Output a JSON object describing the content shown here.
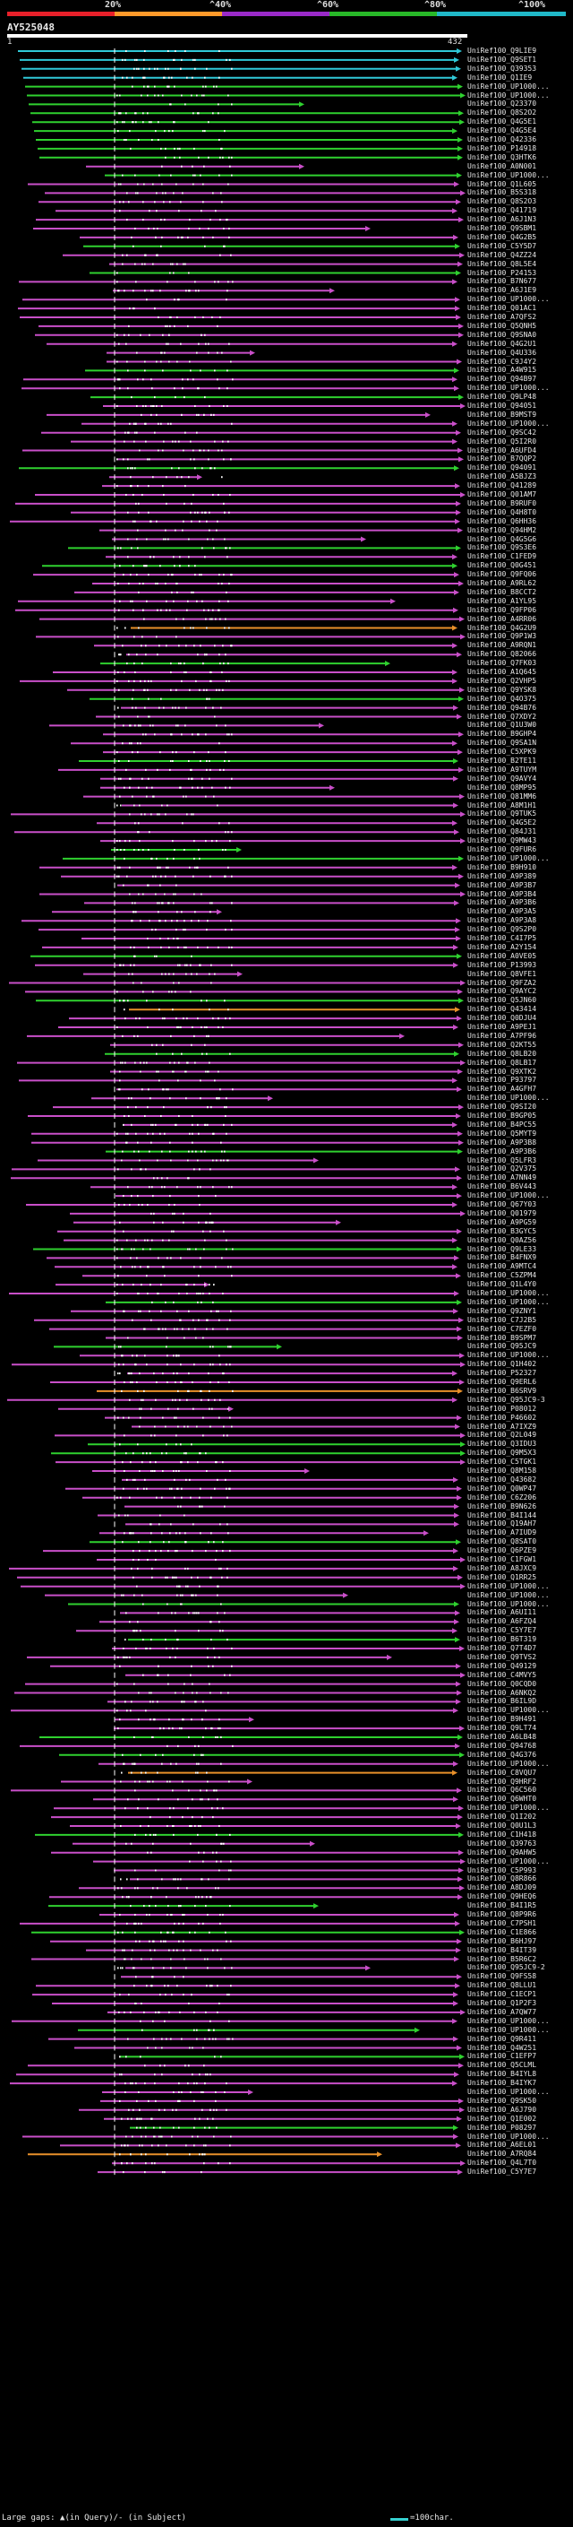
{
  "query": {
    "title": "AY525048",
    "start_label": "1",
    "end_label": "432",
    "length": 432
  },
  "identity_scale": {
    "labels": [
      "20%",
      "^40%",
      "^60%",
      "^80%",
      "^100%"
    ],
    "colors": [
      "#e8202a",
      "#ff9a2a",
      "#9a2ac8",
      "#28b828",
      "#20b8c8"
    ]
  },
  "footer": {
    "text": "Large gaps: ▲(in Query)/- (in Subject)",
    "scale_text": "=100char."
  },
  "hit_ids": [
    "UniRef100_Q9LIE9",
    "UniRef100_Q9SET1",
    "UniRef100_Q39353",
    "UniRef100_Q1IE9",
    "UniRef100_UP1000...",
    "UniRef100_UP1000...",
    "UniRef100_Q23370",
    "UniRef100_Q8S2O2",
    "UniRef100_Q4G5E1",
    "UniRef100_Q4G5E4",
    "UniRef100_Q42336",
    "UniRef100_P14918",
    "UniRef100_Q3HTK6",
    "UniRef100_A0N001",
    "UniRef100_UP1000...",
    "UniRef100_Q1L605",
    "UniRef100_B5S318",
    "UniRef100_Q8S2O3",
    "UniRef100_Q41719",
    "UniRef100_A6J1N3",
    "UniRef100_Q9SBM1",
    "UniRef100_Q4G2B5",
    "UniRef100_C5Y5D7",
    "UniRef100_Q4ZZ24",
    "UniRef100_Q8L5E4",
    "UniRef100_P24153",
    "UniRef100_B7N677",
    "UniRef100_A6J1E9",
    "UniRef100_UP1000...",
    "UniRef100_Q01AC1",
    "UniRef100_A7QFS2",
    "UniRef100_Q5QNH5",
    "UniRef100_Q9SNA0",
    "UniRef100_Q4G2U1",
    "UniRef100_Q4U336",
    "UniRef100_C9J4Y2",
    "UniRef100_A4W915",
    "UniRef100_Q94B97",
    "UniRef100_UP1000...",
    "UniRef100_Q9LP48",
    "UniRef100_Q94051",
    "UniRef100_B9MST9",
    "UniRef100_UP1000...",
    "UniRef100_Q9SC42",
    "UniRef100_Q5I2R0",
    "UniRef100_A6UFD4",
    "UniRef100_B7QQP2",
    "UniRef100_Q94091",
    "UniRef100_A5BJZ3",
    "UniRef100_Q41289",
    "UniRef100_Q01AM7",
    "UniRef100_B9RUF0",
    "UniRef100_Q4H8T0",
    "UniRef100_Q6HH36",
    "UniRef100_Q94HM2",
    "UniRef100_Q4G5G6",
    "UniRef100_Q9S3E6",
    "UniRef100_C1FED9",
    "UniRef100_Q0G451",
    "UniRef100_Q9FQ06",
    "UniRef100_A9RL62",
    "UniRef100_B8CCT2",
    "UniRef100_A1YL95",
    "UniRef100_Q9FP06",
    "UniRef100_A4RR06",
    "UniRef100_Q4G2U9",
    "UniRef100_Q9P1W3",
    "UniRef100_A9RQN1",
    "UniRef100_Q82066",
    "UniRef100_Q7FK03",
    "UniRef100_A1Q645",
    "UniRef100_Q2VHP5",
    "UniRef100_Q9YSK8",
    "UniRef100_Q4O375",
    "UniRef100_Q94B76",
    "UniRef100_Q7XDY2",
    "UniRef100_Q1U3W0",
    "UniRef100_B9GHP4",
    "UniRef100_Q9SA1N",
    "UniRef100_C5XPK9",
    "UniRef100_B2TE11",
    "UniRef100_A9TUYM",
    "UniRef100_Q9AVY4",
    "UniRef100_Q8MP95",
    "UniRef100_Q81MM6",
    "UniRef100_A8M1H1",
    "UniRef100_Q9TUK5",
    "UniRef100_Q4G5E2",
    "UniRef100_Q84J31",
    "UniRef100_Q9MW43",
    "UniRef100_Q9FUR6",
    "UniRef100_UP1000...",
    "UniRef100_B9H910",
    "UniRef100_A9P389",
    "UniRef100_A9P3B7",
    "UniRef100_A9P3B4",
    "UniRef100_A9P3B6",
    "UniRef100_A9P3A5",
    "UniRef100_A9P3A8",
    "UniRef100_Q9S2P0",
    "UniRef100_C4I7P5",
    "UniRef100_A2Y154",
    "UniRef100_A0VE05",
    "UniRef100_P13993",
    "UniRef100_Q8VFE1",
    "UniRef100_Q9FZA2",
    "UniRef100_Q9AYC2",
    "UniRef100_Q5JN60",
    "UniRef100_Q43414",
    "UniRef100_Q0DJU4",
    "UniRef100_A9PEJ1",
    "UniRef100_A7PF96",
    "UniRef100_Q2KT55",
    "UniRef100_Q8LB20",
    "UniRef100_Q8LB17",
    "UniRef100_Q9XTK2",
    "UniRef100_P93797",
    "UniRef100_A4GFH7",
    "UniRef100_UP1000...",
    "UniRef100_Q9SI20",
    "UniRef100_B9GP05",
    "UniRef100_B4PC55",
    "UniRef100_Q5MYT9",
    "UniRef100_A9P3B8",
    "UniRef100_A9P3B6",
    "UniRef100_Q5LFR3",
    "UniRef100_Q2V375",
    "UniRef100_A7NN49",
    "UniRef100_B6V443",
    "UniRef100_UP1000...",
    "UniRef100_Q67Y03",
    "UniRef100_Q01979",
    "UniRef100_A9PG59",
    "UniRef100_B3GYC5",
    "UniRef100_Q0AZ56",
    "UniRef100_Q9LE33",
    "UniRef100_B4FNX9",
    "UniRef100_A9MTC4",
    "UniRef100_C5ZPM4",
    "UniRef100_Q1L4Y0",
    "UniRef100_UP1000...",
    "UniRef100_UP1000...",
    "UniRef100_Q9ZNY1",
    "UniRef100_C7J2B5",
    "UniRef100_C7EZF0",
    "UniRef100_B9SPM7",
    "UniRef100_Q95JC9",
    "UniRef100_UP1000...",
    "UniRef100_Q1H402",
    "UniRef100_P52327",
    "UniRef100_Q9ERL6",
    "UniRef100_B6SRV9",
    "UniRef100_Q95JC9-3",
    "UniRef100_P08012",
    "UniRef100_P46602",
    "UniRef100_A7IXZ9",
    "UniRef100_Q2L049",
    "UniRef100_Q3IDU3",
    "UniRef100_Q9M5X3",
    "UniRef100_C5TGK1",
    "UniRef100_Q8M158",
    "UniRef100_Q43682",
    "UniRef100_Q0WP47",
    "UniRef100_C6Z206",
    "UniRef100_B9N626",
    "UniRef100_B4I144",
    "UniRef100_Q19AH7",
    "UniRef100_A7IUD9",
    "UniRef100_Q8SAT0",
    "UniRef100_Q6PZE9",
    "UniRef100_C1FGW1",
    "UniRef100_A8JXC9",
    "UniRef100_Q1RR25",
    "UniRef100_UP1000...",
    "UniRef100_UP1000...",
    "UniRef100_UP1000...",
    "UniRef100_A6UI11",
    "UniRef100_A6FZQ4",
    "UniRef100_C5Y7E7",
    "UniRef100_B6T319",
    "UniRef100_Q7T4D7",
    "UniRef100_Q9TVS2",
    "UniRef100_Q49129",
    "UniRef100_C4MVY5",
    "UniRef100_Q0CQD0",
    "UniRef100_A6NKQ2",
    "UniRef100_B6IL9D",
    "UniRef100_UP1000...",
    "UniRef100_B9H491",
    "UniRef100_Q9LT74",
    "UniRef100_A6LB48",
    "UniRef100_Q94768",
    "UniRef100_Q4G376",
    "UniRef100_UP1000...",
    "UniRef100_C8VQU7",
    "UniRef100_Q9HRF2",
    "UniRef100_Q6C560",
    "UniRef100_Q6WHT0",
    "UniRef100_UP1000...",
    "UniRef100_Q1I202",
    "UniRef100_Q0U1L3",
    "UniRef100_C1H418",
    "UniRef100_Q39763",
    "UniRef100_Q9AHW5",
    "UniRef100_UP1000...",
    "UniRef100_C5P993",
    "UniRef100_Q8R866",
    "UniRef100_A8DJ09",
    "UniRef100_Q9HEQ6",
    "UniRef100_B4I1R5",
    "UniRef100_Q8P9R6",
    "UniRef100_C7PSH1",
    "UniRef100_C1E866",
    "UniRef100_B6HJ97",
    "UniRef100_B4IT39",
    "UniRef100_B5R6C2",
    "UniRef100_Q95JC9-2",
    "UniRef100_Q9FS58",
    "UniRef100_Q8LLU1",
    "UniRef100_C1ECP1",
    "UniRef100_Q1P2F3",
    "UniRef100_A7QW77",
    "UniRef100_UP1000...",
    "UniRef100_UP1000...",
    "UniRef100_Q9R411",
    "UniRef100_Q4W251",
    "UniRef100_C1EFP7",
    "UniRef100_Q5CLML",
    "UniRef100_B4IYL8",
    "UniRef100_B4IYK7",
    "UniRef100_UP1000...",
    "UniRef100_Q9SK50",
    "UniRef100_A6J790",
    "UniRef100_Q1E002",
    "UniRef100_P08297",
    "UniRef100_UP1000...",
    "UniRef100_A6EL01",
    "UniRef100_A7RQ84",
    "UniRef100_Q4L7T0",
    "UniRef100_C5Y7E7"
  ]
}
